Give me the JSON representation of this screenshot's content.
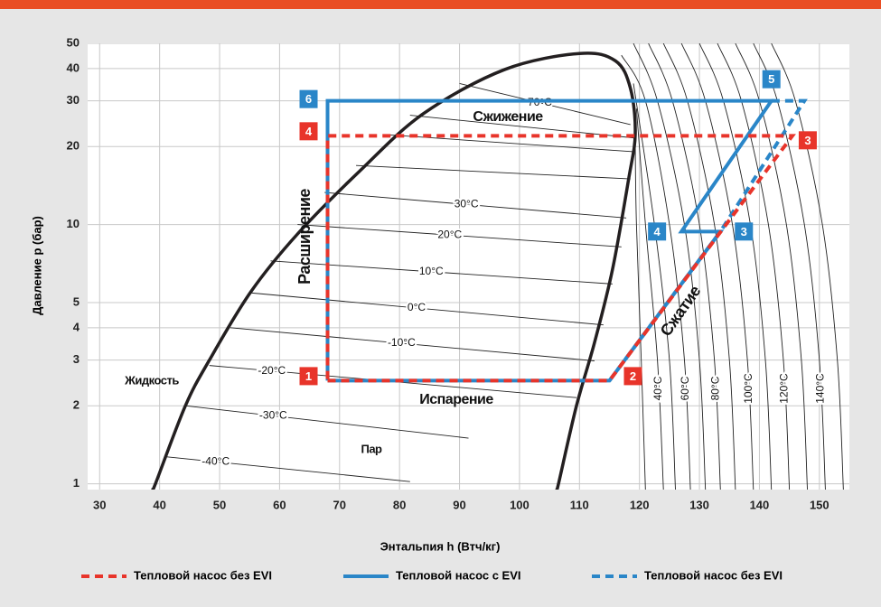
{
  "chart_data": {
    "type": "line",
    "xlabel": "Энтальпия h (Втч/кг)",
    "ylabel": "Давление p (бар)",
    "xlim": [
      28,
      155
    ],
    "xticks": [
      30,
      40,
      50,
      60,
      70,
      80,
      90,
      100,
      110,
      120,
      130,
      140,
      150
    ],
    "ylim": [
      0.95,
      50
    ],
    "yticks": [
      1,
      2,
      3,
      4,
      5,
      10,
      20,
      30,
      40,
      50
    ],
    "log_y": true,
    "grid": true,
    "series": [
      {
        "name": "Тепловой насос без EVI",
        "color": "#e8342a",
        "dashed": true,
        "x": [
          68,
          115,
          145.5,
          68,
          68
        ],
        "y": [
          2.5,
          2.5,
          22,
          22,
          2.5
        ],
        "point_labels": [
          "1",
          "2",
          "3",
          "4",
          null
        ]
      },
      {
        "name": "Тепловой насос с EVI",
        "color": "#2a86c8",
        "dashed": false,
        "x": [
          68,
          115,
          133.5,
          127,
          142,
          68,
          68
        ],
        "y": [
          2.5,
          2.5,
          9.4,
          9.4,
          30,
          30,
          2.5
        ],
        "point_labels": [
          null,
          null,
          "3",
          "4",
          "5",
          "6",
          null
        ]
      },
      {
        "name": "Тепловой насос без EVI",
        "color": "#2a86c8",
        "dashed": true,
        "x": [
          115,
          133.5,
          147.5,
          142
        ],
        "y": [
          2.5,
          9.4,
          30,
          30
        ]
      }
    ],
    "saturation_curve": {
      "color": "#231f20",
      "x": [
        38.8,
        39.3,
        44.3,
        48.3,
        55.2,
        63,
        73.5,
        84,
        97.5,
        110,
        116,
        118.5,
        119.3,
        118.2,
        115.5,
        112.5,
        109.5,
        106.5,
        106.2
      ],
      "y": [
        0.95,
        1,
        2,
        3,
        5.5,
        9.2,
        16.2,
        26.8,
        39.6,
        45.7,
        42.8,
        33.5,
        22.4,
        15,
        6.7,
        3.5,
        2,
        1,
        0.95
      ]
    },
    "isotherms": [
      {
        "label": "-40°C",
        "x": [
          41.25,
          81.75
        ],
        "y": [
          1.27,
          1.02
        ]
      },
      {
        "label": "-30°C",
        "x": [
          44.3,
          91.5
        ],
        "y": [
          2.0,
          1.5
        ]
      },
      {
        "label": "-20°C",
        "x": [
          48.3,
          109.5
        ],
        "y": [
          2.86,
          2.15
        ]
      },
      {
        "label": "-10°C",
        "x": [
          51.8,
          112.5
        ],
        "y": [
          4.0,
          2.98
        ]
      },
      {
        "label": "0°C",
        "x": [
          55.2,
          114
        ],
        "y": [
          5.45,
          4.1
        ]
      },
      {
        "label": "10°C",
        "x": [
          58.5,
          115.5
        ],
        "y": [
          7.24,
          5.9
        ]
      },
      {
        "label": "20°C",
        "x": [
          63,
          117
        ],
        "y": [
          10,
          8.2
        ]
      },
      {
        "label": "30°C",
        "x": [
          67.5,
          117.8
        ],
        "y": [
          13.3,
          10.6
        ]
      },
      {
        "label": null,
        "x": [
          72.75,
          118.5
        ],
        "y": [
          16.9,
          15
        ]
      },
      {
        "label": null,
        "x": [
          78,
          119
        ],
        "y": [
          22.2,
          19.1
        ]
      },
      {
        "label": null,
        "x": [
          81.75,
          119
        ],
        "y": [
          26.4,
          21.6
        ]
      },
      {
        "label": "70°C",
        "x": [
          90,
          118.5
        ],
        "y": [
          35,
          24.3
        ]
      },
      {
        "label": null,
        "x": [
          121,
          120.3,
          119.5,
          119.3
        ],
        "y": [
          0.95,
          3,
          10,
          20
        ]
      },
      {
        "label": "40°C",
        "x": [
          124,
          123,
          121,
          119.5
        ],
        "y": [
          0.95,
          3,
          10,
          28
        ]
      },
      {
        "label": null,
        "x": [
          126,
          125,
          122.5,
          119
        ],
        "y": [
          0.95,
          3,
          10,
          35
        ]
      },
      {
        "label": "60°C",
        "x": [
          128.5,
          127.5,
          125,
          121,
          117
        ],
        "y": [
          0.95,
          3,
          10,
          30,
          45
        ]
      },
      {
        "label": null,
        "x": [
          131,
          130,
          127.5,
          123,
          119
        ],
        "y": [
          0.95,
          3,
          10,
          30,
          50
        ]
      },
      {
        "label": "80°C",
        "x": [
          133.5,
          132.5,
          130,
          125.5,
          121.5
        ],
        "y": [
          0.95,
          3,
          10,
          30,
          50
        ]
      },
      {
        "label": null,
        "x": [
          136,
          135,
          132.5,
          128,
          124
        ],
        "y": [
          0.95,
          3,
          10,
          30,
          50
        ]
      },
      {
        "label": "100°C",
        "x": [
          139,
          138,
          135.5,
          131,
          127
        ],
        "y": [
          0.95,
          3,
          10,
          30,
          50
        ]
      },
      {
        "label": null,
        "x": [
          142,
          141,
          138.5,
          134,
          130
        ],
        "y": [
          0.95,
          3,
          10,
          30,
          50
        ]
      },
      {
        "label": "120°C",
        "x": [
          145,
          144,
          141.5,
          137,
          133
        ],
        "y": [
          0.95,
          3,
          10,
          30,
          50
        ]
      },
      {
        "label": null,
        "x": [
          148,
          147,
          144.5,
          140,
          136
        ],
        "y": [
          0.95,
          3,
          10,
          30,
          50
        ]
      },
      {
        "label": "140°C",
        "x": [
          151,
          150,
          147.5,
          143,
          139
        ],
        "y": [
          0.95,
          3,
          10,
          30,
          50
        ]
      },
      {
        "label": null,
        "x": [
          154,
          153,
          150.5,
          146,
          142
        ],
        "y": [
          0.95,
          3,
          10,
          30,
          50
        ]
      }
    ],
    "annotations": [
      "Сжижение",
      "Испарение",
      "Расширение",
      "Сжатие",
      "Жидкость",
      "Пар"
    ]
  }
}
